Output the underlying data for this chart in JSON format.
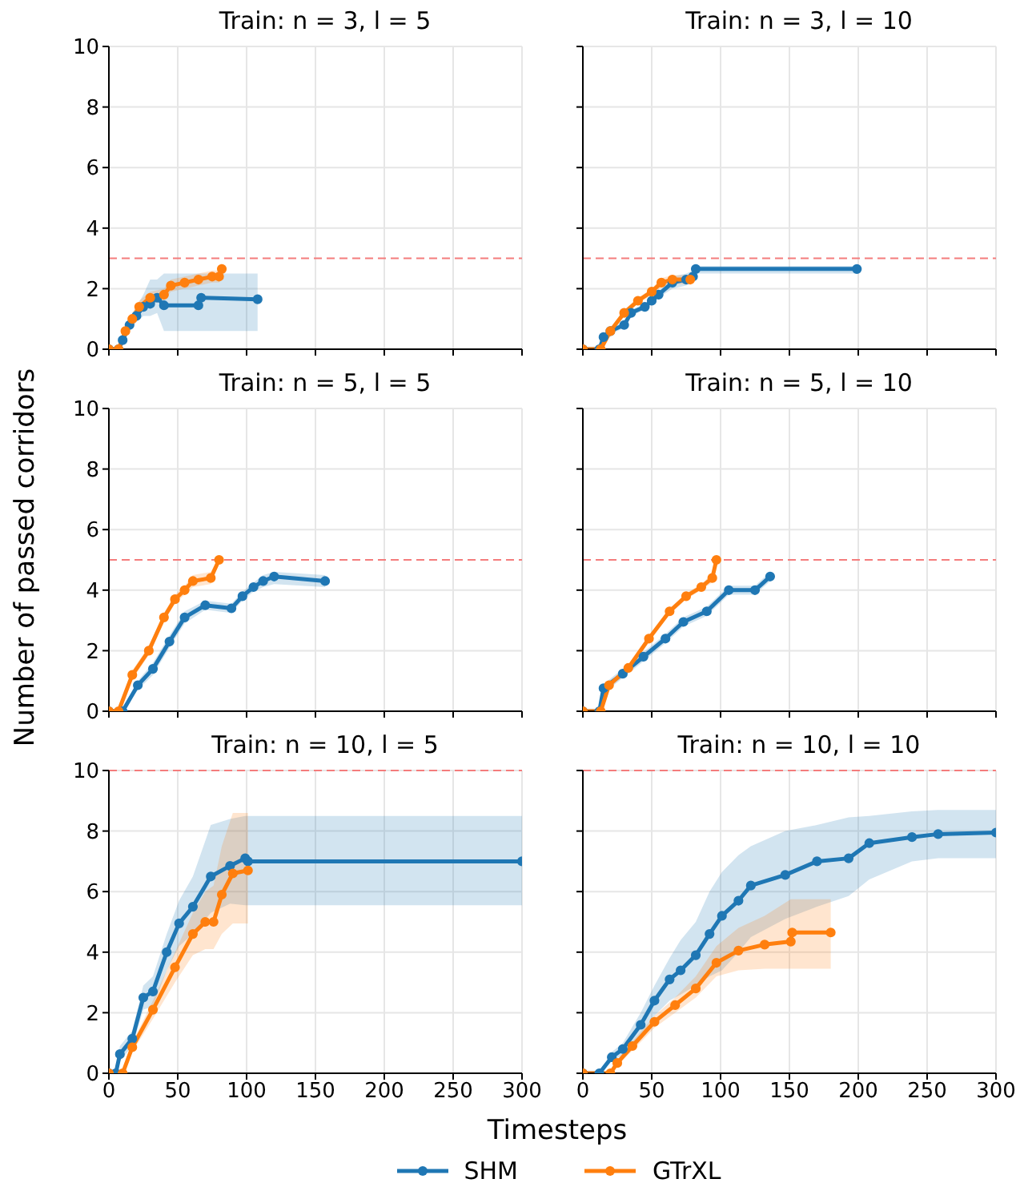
{
  "chart_data": [
    {
      "type": "line",
      "title": "Train: n = 3, l = 5",
      "xlim": [
        0,
        300
      ],
      "xticks": [
        0,
        50,
        100,
        150,
        200,
        250,
        300
      ],
      "ylim": [
        0,
        10
      ],
      "yticks": [
        0,
        2,
        4,
        6,
        8,
        10
      ],
      "grid": true,
      "marker": "circle",
      "line_style": "solid",
      "tick_labels": "y",
      "legend": "bottom",
      "ref_lines": [
        {
          "axis": "y",
          "value": 3,
          "color": "#f47c7c",
          "line_style": "dashed"
        }
      ],
      "series": [
        {
          "name": "SHM",
          "color": "#1f77b4",
          "x": [
            0,
            7,
            10,
            15,
            20,
            25,
            30,
            35,
            40,
            65,
            67,
            108
          ],
          "values": [
            0,
            0,
            0.3,
            0.8,
            1.1,
            1.4,
            1.5,
            1.7,
            1.45,
            1.45,
            1.7,
            1.65
          ],
          "lower": [
            0,
            0,
            0.2,
            0.6,
            0.9,
            1.1,
            1.1,
            1.2,
            0.6,
            0.6,
            0.6,
            0.6
          ],
          "upper": [
            0,
            0,
            0.4,
            1.0,
            1.4,
            1.8,
            2.3,
            2.3,
            2.5,
            2.5,
            2.5,
            2.5
          ]
        },
        {
          "name": "GTrXL",
          "color": "#ff7f0e",
          "x": [
            0,
            7,
            12,
            17,
            22,
            30,
            40,
            45,
            55,
            65,
            75,
            80,
            82
          ],
          "values": [
            0,
            0,
            0.6,
            1.0,
            1.4,
            1.7,
            1.8,
            2.1,
            2.2,
            2.3,
            2.4,
            2.4,
            2.65
          ],
          "lower": [
            0,
            0,
            0.4,
            0.8,
            1.2,
            1.5,
            1.6,
            1.9,
            2.0,
            2.1,
            2.2,
            2.2,
            2.45
          ],
          "upper": [
            0,
            0,
            0.8,
            1.2,
            1.6,
            1.9,
            2.0,
            2.3,
            2.4,
            2.5,
            2.6,
            2.6,
            2.85
          ]
        }
      ]
    },
    {
      "type": "line",
      "title": "Train: n = 3, l = 10",
      "xlim": [
        0,
        300
      ],
      "xticks": [
        0,
        50,
        100,
        150,
        200,
        250,
        300
      ],
      "ylim": [
        0,
        10
      ],
      "yticks": [
        0,
        2,
        4,
        6,
        8,
        10
      ],
      "grid": true,
      "marker": "circle",
      "line_style": "solid",
      "tick_labels": false,
      "ref_lines": [
        {
          "axis": "y",
          "value": 3,
          "color": "#f47c7c",
          "line_style": "dashed"
        }
      ],
      "series": [
        {
          "color": "#1f77b4",
          "x": [
            0,
            12,
            15,
            20,
            30,
            35,
            45,
            50,
            55,
            65,
            75,
            80,
            82,
            199
          ],
          "values": [
            0,
            0,
            0.4,
            0.6,
            0.8,
            1.2,
            1.4,
            1.6,
            1.8,
            2.2,
            2.3,
            2.4,
            2.65,
            2.65
          ],
          "lower": [
            0,
            0,
            0.3,
            0.5,
            0.7,
            1.1,
            1.3,
            1.5,
            1.7,
            2.0,
            2.1,
            2.2,
            2.5,
            2.5
          ],
          "upper": [
            0,
            0,
            0.5,
            0.7,
            0.9,
            1.3,
            1.5,
            1.7,
            1.9,
            2.4,
            2.5,
            2.6,
            2.75,
            2.75
          ]
        },
        {
          "color": "#ff7f0e",
          "x": [
            0,
            13,
            20,
            30,
            40,
            50,
            57,
            65,
            78
          ],
          "values": [
            0,
            0,
            0.6,
            1.2,
            1.6,
            1.9,
            2.2,
            2.3,
            2.3
          ],
          "lower": [
            0,
            0,
            0.5,
            1.1,
            1.5,
            1.8,
            2.05,
            2.15,
            2.15
          ],
          "upper": [
            0,
            0,
            0.7,
            1.3,
            1.7,
            2.0,
            2.35,
            2.45,
            2.45
          ]
        }
      ]
    },
    {
      "type": "line",
      "title": "Train: n = 5, l = 5",
      "xlim": [
        0,
        300
      ],
      "xticks": [
        0,
        50,
        100,
        150,
        200,
        250,
        300
      ],
      "ylim": [
        0,
        10
      ],
      "yticks": [
        0,
        2,
        4,
        6,
        8,
        10
      ],
      "grid": true,
      "marker": "circle",
      "line_style": "solid",
      "tick_labels": "y",
      "ylabel": "Number of passed corridors",
      "ref_lines": [
        {
          "axis": "y",
          "value": 5,
          "color": "#f47c7c",
          "line_style": "dashed"
        }
      ],
      "series": [
        {
          "color": "#1f77b4",
          "x": [
            0,
            10,
            21,
            32,
            44,
            55,
            70,
            89,
            97,
            105,
            112,
            120,
            157
          ],
          "values": [
            0,
            0,
            0.86,
            1.4,
            2.3,
            3.1,
            3.5,
            3.4,
            3.8,
            4.1,
            4.3,
            4.45,
            4.3
          ],
          "lower": [
            0,
            0,
            0.7,
            1.2,
            2.1,
            2.9,
            3.35,
            3.25,
            3.65,
            3.95,
            4.1,
            4.2,
            4.1
          ],
          "upper": [
            0,
            0,
            1.0,
            1.6,
            2.5,
            3.3,
            3.65,
            3.55,
            3.95,
            4.25,
            4.5,
            4.6,
            4.5
          ]
        },
        {
          "color": "#ff7f0e",
          "x": [
            0,
            7,
            17,
            29,
            40,
            48,
            55,
            61,
            74,
            80
          ],
          "values": [
            0,
            0,
            1.2,
            2.0,
            3.1,
            3.7,
            4.0,
            4.3,
            4.4,
            5.0
          ],
          "lower": [
            0,
            0,
            1.05,
            1.85,
            2.95,
            3.55,
            3.85,
            4.1,
            4.2,
            4.9
          ],
          "upper": [
            0,
            0,
            1.35,
            2.15,
            3.25,
            3.85,
            4.15,
            4.5,
            4.6,
            5.1
          ]
        }
      ]
    },
    {
      "type": "line",
      "title": "Train: n = 5, l = 10",
      "xlim": [
        0,
        300
      ],
      "xticks": [
        0,
        50,
        100,
        150,
        200,
        250,
        300
      ],
      "ylim": [
        0,
        10
      ],
      "yticks": [
        0,
        2,
        4,
        6,
        8,
        10
      ],
      "grid": true,
      "marker": "circle",
      "line_style": "solid",
      "tick_labels": false,
      "ref_lines": [
        {
          "axis": "y",
          "value": 5,
          "color": "#f47c7c",
          "line_style": "dashed"
        }
      ],
      "series": [
        {
          "color": "#1f77b4",
          "x": [
            0,
            12,
            15,
            29,
            44,
            60,
            73,
            90,
            106,
            125,
            136
          ],
          "values": [
            0,
            0,
            0.76,
            1.24,
            1.8,
            2.4,
            2.95,
            3.3,
            4.0,
            4.0,
            4.45
          ],
          "lower": [
            0,
            0,
            0.6,
            1.1,
            1.65,
            2.25,
            2.8,
            3.15,
            3.85,
            3.85,
            4.3
          ],
          "upper": [
            0,
            0,
            0.9,
            1.4,
            1.95,
            2.55,
            3.1,
            3.45,
            4.15,
            4.15,
            4.6
          ]
        },
        {
          "color": "#ff7f0e",
          "x": [
            0,
            13,
            19,
            33,
            48,
            63,
            75,
            86,
            94,
            97
          ],
          "values": [
            0,
            0,
            0.86,
            1.43,
            2.4,
            3.3,
            3.8,
            4.1,
            4.4,
            5.0
          ],
          "lower": [
            0,
            0,
            0.75,
            1.3,
            2.3,
            3.2,
            3.7,
            4.0,
            4.25,
            4.9
          ],
          "upper": [
            0,
            0,
            0.95,
            1.55,
            2.5,
            3.4,
            3.9,
            4.2,
            4.55,
            5.1
          ]
        }
      ]
    },
    {
      "type": "line",
      "title": "Train: n = 10, l = 5",
      "xlim": [
        0,
        300
      ],
      "xticks": [
        0,
        50,
        100,
        150,
        200,
        250,
        300
      ],
      "ylim": [
        0,
        10
      ],
      "yticks": [
        0,
        2,
        4,
        6,
        8,
        10
      ],
      "grid": true,
      "marker": "circle",
      "line_style": "solid",
      "xlabel": "Timesteps",
      "ref_lines": [
        {
          "axis": "y",
          "value": 10,
          "color": "#f47c7c",
          "line_style": "dashed"
        }
      ],
      "series": [
        {
          "color": "#1f77b4",
          "x": [
            0,
            5,
            8,
            17,
            25,
            32,
            42,
            51,
            61,
            74,
            88,
            99,
            101,
            300
          ],
          "values": [
            0,
            0,
            0.63,
            1.14,
            2.5,
            2.7,
            4.0,
            4.95,
            5.5,
            6.5,
            6.85,
            7.1,
            7.0,
            7.0
          ],
          "lower": [
            0,
            0,
            0.4,
            0.9,
            2.1,
            2.2,
            3.4,
            4.2,
            4.6,
            5.3,
            5.6,
            5.55,
            5.55,
            5.55
          ],
          "upper": [
            0,
            0,
            0.9,
            1.4,
            2.9,
            3.2,
            4.6,
            5.7,
            6.5,
            8.2,
            8.4,
            8.5,
            8.5,
            8.5
          ]
        },
        {
          "color": "#ff7f0e",
          "x": [
            0,
            10,
            17,
            32,
            48,
            61,
            70,
            76,
            82,
            90,
            101
          ],
          "values": [
            0,
            0,
            0.86,
            2.1,
            3.5,
            4.6,
            5.0,
            5.0,
            5.9,
            6.6,
            6.7
          ],
          "lower": [
            0,
            0,
            0.7,
            1.8,
            3.0,
            3.9,
            4.1,
            4.1,
            4.6,
            4.95,
            4.95
          ],
          "upper": [
            0,
            0,
            1.0,
            2.4,
            4.0,
            5.3,
            6.0,
            6.2,
            7.5,
            8.6,
            8.6
          ]
        }
      ]
    },
    {
      "type": "line",
      "title": "Train: n = 10, l = 10",
      "xlim": [
        0,
        300
      ],
      "xticks": [
        0,
        50,
        100,
        150,
        200,
        250,
        300
      ],
      "ylim": [
        0,
        10
      ],
      "yticks": [
        0,
        2,
        4,
        6,
        8,
        10
      ],
      "grid": true,
      "marker": "circle",
      "line_style": "solid",
      "tick_labels": "x",
      "ref_lines": [
        {
          "axis": "y",
          "value": 10,
          "color": "#f47c7c",
          "line_style": "dashed"
        }
      ],
      "series": [
        {
          "color": "#1f77b4",
          "x": [
            0,
            12,
            21,
            29,
            42,
            52,
            63,
            71,
            82,
            92,
            101,
            113,
            122,
            147,
            170,
            193,
            208,
            239,
            258,
            300
          ],
          "values": [
            0,
            0,
            0.53,
            0.8,
            1.6,
            2.4,
            3.1,
            3.4,
            3.9,
            4.6,
            5.2,
            5.7,
            6.2,
            6.55,
            7.0,
            7.1,
            7.6,
            7.8,
            7.9,
            7.95
          ],
          "lower": [
            0,
            0,
            0.4,
            0.6,
            1.2,
            1.9,
            2.4,
            2.6,
            2.9,
            3.2,
            3.4,
            4.0,
            4.5,
            5.1,
            5.5,
            5.85,
            6.4,
            7.0,
            7.1,
            7.1
          ],
          "upper": [
            0,
            0,
            0.7,
            1.0,
            2.0,
            2.9,
            3.8,
            4.4,
            5.0,
            6.0,
            6.65,
            7.2,
            7.5,
            8.0,
            8.2,
            8.45,
            8.5,
            8.65,
            8.7,
            8.7
          ]
        },
        {
          "color": "#ff7f0e",
          "x": [
            0,
            20,
            25,
            36,
            52,
            67,
            82,
            97,
            113,
            132,
            151,
            152,
            180
          ],
          "values": [
            0,
            0,
            0.34,
            0.9,
            1.7,
            2.25,
            2.8,
            3.65,
            4.05,
            4.25,
            4.35,
            4.65,
            4.65
          ],
          "lower": [
            0,
            0,
            0.25,
            0.75,
            1.5,
            2.0,
            2.5,
            3.2,
            3.4,
            3.45,
            3.45,
            3.45,
            3.45
          ],
          "upper": [
            0,
            0,
            0.45,
            1.05,
            1.9,
            2.5,
            3.2,
            4.2,
            4.8,
            5.2,
            5.75,
            5.75,
            5.75
          ]
        }
      ]
    }
  ]
}
